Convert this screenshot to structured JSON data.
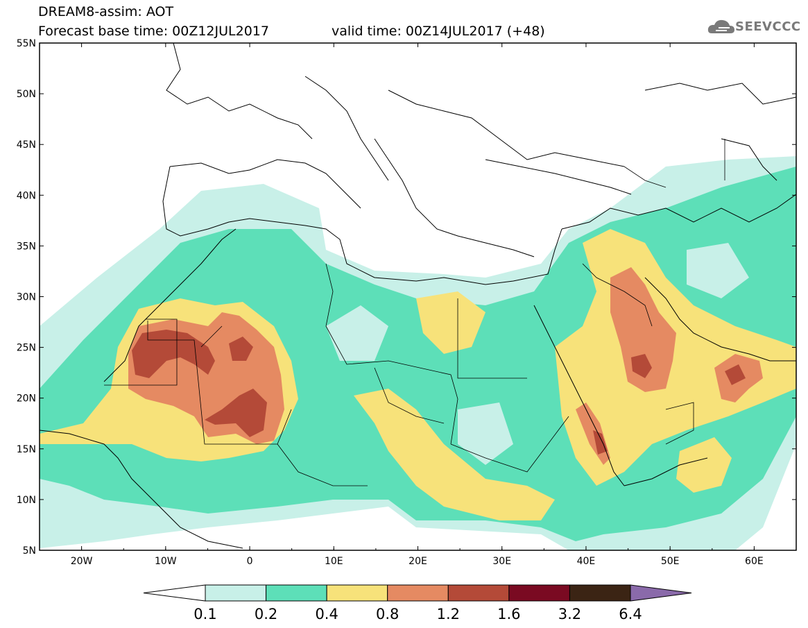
{
  "header": {
    "line1": "DREAM8-assim: AOT",
    "line2": "Forecast base time: 00Z12JUL2017",
    "line3": "valid time: 00Z14JUL2017 (+48)"
  },
  "logo": {
    "text": "SEEVCCC",
    "icon": "cloud-icon"
  },
  "map": {
    "lon_range": [
      -25,
      65
    ],
    "lat_range": [
      5,
      55
    ],
    "lat_labels": [
      "55N",
      "50N",
      "45N",
      "40N",
      "35N",
      "30N",
      "25N",
      "20N",
      "15N",
      "10N",
      "5N"
    ],
    "lon_labels": [
      "20W",
      "10W",
      "0",
      "10E",
      "20E",
      "30E",
      "40E",
      "50E",
      "60E"
    ],
    "field": "Aerosol Optical Thickness"
  },
  "colorbar": {
    "levels": [
      "0.1",
      "0.2",
      "0.4",
      "0.8",
      "1.2",
      "1.6",
      "3.2",
      "6.4"
    ],
    "colors": [
      "#c8f0e8",
      "#5ddfb8",
      "#f7e27a",
      "#e58a62",
      "#b44a38",
      "#7a0a22",
      "#3b2414",
      "#8a6aaa"
    ],
    "under_color": "#ffffff",
    "over_color": "#8a6aaa"
  }
}
